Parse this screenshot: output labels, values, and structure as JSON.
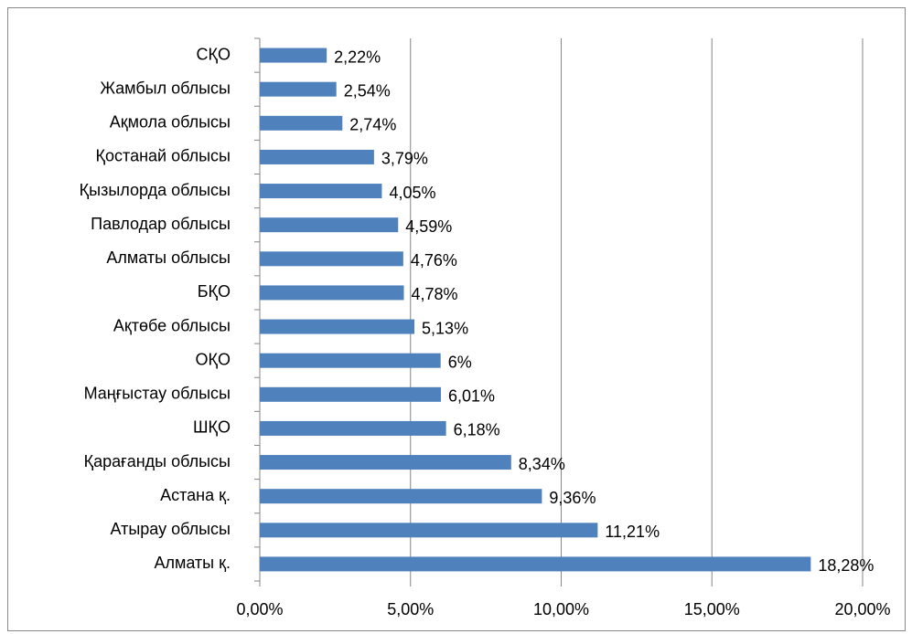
{
  "chart_data": {
    "type": "bar",
    "orientation": "horizontal",
    "categories": [
      "СҚО",
      "Жамбыл облысы",
      "Ақмола облысы",
      "Қостанай облысы",
      "Қызылорда облысы",
      "Павлодар облысы",
      "Алматы облысы",
      "БҚО",
      "Ақтөбе облысы",
      "ОҚО",
      "Маңғыстау облысы",
      "ШҚО",
      "Қарағанды облысы",
      "Астана қ.",
      "Атырау облысы",
      "Алматы қ."
    ],
    "values": [
      2.22,
      2.54,
      2.74,
      3.79,
      4.05,
      4.59,
      4.76,
      4.78,
      5.13,
      6,
      6.01,
      6.18,
      8.34,
      9.36,
      11.21,
      18.28
    ],
    "value_labels": [
      "2,22%",
      "2,54%",
      "2,74%",
      "3,79%",
      "4,05%",
      "4,59%",
      "4,76%",
      "4,78%",
      "5,13%",
      "6%",
      "6,01%",
      "6,18%",
      "8,34%",
      "9,36%",
      "11,21%",
      "18,28%"
    ],
    "color": "#4f81bd",
    "xlim": [
      0,
      20
    ],
    "xticks": [
      {
        "value": 0,
        "label": "0,00%"
      },
      {
        "value": 5,
        "label": "5,00%"
      },
      {
        "value": 10,
        "label": "10,00%"
      },
      {
        "value": 15,
        "label": "15,00%"
      },
      {
        "value": 20,
        "label": "20,00%"
      }
    ],
    "grid": true
  }
}
